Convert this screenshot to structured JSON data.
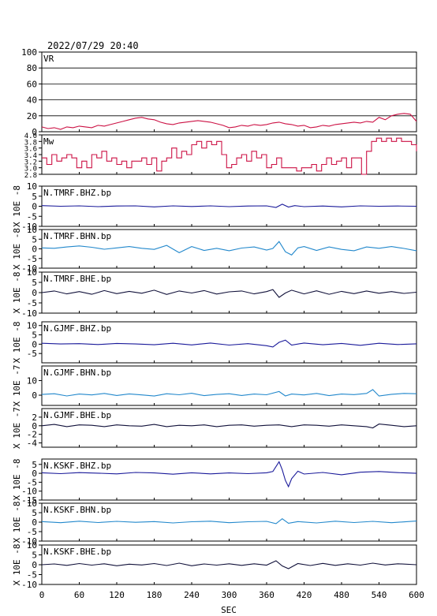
{
  "title": "2022/07/29 20:40",
  "xlabel": "SEC",
  "x_ticks": [
    "0",
    "60",
    "120",
    "180",
    "240",
    "300",
    "360",
    "420",
    "480",
    "540",
    "600"
  ],
  "x_range": [
    0,
    600
  ],
  "chart_data": [
    {
      "type": "line",
      "name": "VR",
      "label": "VR",
      "ylim": [
        0,
        100
      ],
      "yticks": [
        0,
        20,
        40,
        60,
        80,
        100
      ],
      "ytick_labels": [
        "0",
        "20",
        "40",
        "60",
        "80",
        "100"
      ],
      "grid": "horizontal",
      "color": "#cc1144",
      "x": [
        0,
        10,
        20,
        30,
        40,
        50,
        60,
        70,
        80,
        90,
        100,
        110,
        120,
        130,
        140,
        150,
        160,
        170,
        180,
        190,
        200,
        210,
        220,
        230,
        240,
        250,
        260,
        270,
        280,
        290,
        300,
        310,
        320,
        330,
        340,
        350,
        360,
        370,
        380,
        390,
        400,
        410,
        420,
        430,
        440,
        450,
        460,
        470,
        480,
        490,
        500,
        510,
        520,
        530,
        540,
        550,
        560,
        570,
        580,
        590,
        600
      ],
      "y": [
        6,
        4,
        5,
        3,
        6,
        5,
        7,
        6,
        5,
        8,
        7,
        9,
        11,
        13,
        15,
        17,
        18,
        16,
        15,
        12,
        10,
        9,
        11,
        12,
        13,
        14,
        13,
        12,
        10,
        8,
        5,
        6,
        8,
        7,
        9,
        8,
        9,
        11,
        12,
        10,
        9,
        7,
        8,
        5,
        6,
        8,
        7,
        9,
        10,
        11,
        12,
        11,
        13,
        12,
        18,
        15,
        20,
        22,
        23,
        22,
        13
      ]
    },
    {
      "type": "step",
      "name": "Mw",
      "label": "Mw",
      "ylim": [
        2.8,
        4.0
      ],
      "yticks": [
        2.8,
        3.0,
        3.2,
        3.4,
        3.6,
        3.8,
        4.0
      ],
      "ytick_labels": [
        "2.8",
        "3.0",
        "3.2",
        "3.4",
        "3.6",
        "3.8",
        "4.0"
      ],
      "color": "#cc1144",
      "x": [
        0,
        8,
        16,
        24,
        32,
        40,
        48,
        56,
        64,
        72,
        80,
        88,
        96,
        104,
        112,
        120,
        128,
        136,
        144,
        152,
        160,
        168,
        176,
        184,
        192,
        200,
        208,
        216,
        224,
        232,
        240,
        248,
        256,
        264,
        272,
        280,
        288,
        296,
        304,
        312,
        320,
        328,
        336,
        344,
        352,
        360,
        368,
        376,
        384,
        392,
        400,
        408,
        416,
        424,
        432,
        440,
        448,
        456,
        464,
        472,
        480,
        488,
        496,
        504,
        512,
        520,
        528,
        536,
        544,
        552,
        560,
        568,
        576,
        584,
        592,
        600
      ],
      "y": [
        3.3,
        3.1,
        3.4,
        3.2,
        3.3,
        3.4,
        3.3,
        3.0,
        3.2,
        3.0,
        3.4,
        3.3,
        3.5,
        3.2,
        3.3,
        3.1,
        3.2,
        3.0,
        3.2,
        3.2,
        3.3,
        3.1,
        3.3,
        2.9,
        3.2,
        3.3,
        3.6,
        3.3,
        3.5,
        3.4,
        3.7,
        3.8,
        3.6,
        3.8,
        3.7,
        3.8,
        3.4,
        3.0,
        3.1,
        3.3,
        3.4,
        3.2,
        3.5,
        3.3,
        3.4,
        3.0,
        3.1,
        3.3,
        3.0,
        3.0,
        3.0,
        2.9,
        3.0,
        3.0,
        3.1,
        2.9,
        3.1,
        3.3,
        3.1,
        3.2,
        3.3,
        3.0,
        3.3,
        3.3,
        2.8,
        3.5,
        3.8,
        3.9,
        3.8,
        3.9,
        3.8,
        3.9,
        3.8,
        3.8,
        3.7,
        3.5
      ]
    },
    {
      "type": "line",
      "name": "N.TMRF.BHZ.bp",
      "label": "N.TMRF.BHZ.bp",
      "ylim": [
        -10,
        10
      ],
      "yticks": [
        -10,
        -5,
        0,
        5,
        10
      ],
      "ytick_labels": [
        "-10",
        "-5",
        "0",
        "5",
        "10"
      ],
      "ylabel": "X 10E -8",
      "color": "#1a1a9a",
      "x": [
        0,
        30,
        60,
        90,
        120,
        150,
        180,
        210,
        240,
        270,
        300,
        330,
        360,
        375,
        385,
        395,
        405,
        420,
        450,
        480,
        510,
        540,
        570,
        600
      ],
      "y": [
        0.3,
        0,
        0.2,
        -0.2,
        0.1,
        0.2,
        -0.3,
        0.2,
        -0.1,
        0.2,
        -0.2,
        0.1,
        0.2,
        -0.6,
        1.0,
        -0.4,
        0.3,
        -0.2,
        0.1,
        -0.3,
        0.2,
        0,
        0.1,
        0
      ]
    },
    {
      "type": "line",
      "name": "N.TMRF.BHN.bp",
      "label": "N.TMRF.BHN.bp",
      "ylim": [
        -10,
        10
      ],
      "yticks": [
        -10,
        -5,
        0,
        5,
        10
      ],
      "ytick_labels": [
        "-10",
        "-5",
        "0",
        "5",
        "10"
      ],
      "ylabel": "X 10E -8",
      "color": "#2288cc",
      "x": [
        0,
        20,
        40,
        60,
        80,
        100,
        120,
        140,
        160,
        180,
        200,
        220,
        240,
        260,
        280,
        300,
        320,
        340,
        360,
        370,
        380,
        390,
        400,
        410,
        420,
        440,
        460,
        480,
        500,
        520,
        540,
        560,
        580,
        600
      ],
      "y": [
        0.5,
        0.3,
        1.0,
        1.5,
        0.8,
        -0.2,
        0.5,
        1.2,
        0.3,
        -0.3,
        1.8,
        -2.0,
        1.2,
        -0.8,
        0.3,
        -1.0,
        0.4,
        1.0,
        -0.6,
        0.2,
        3.8,
        -1.5,
        -3.2,
        0.5,
        1.2,
        -0.8,
        1.0,
        -0.3,
        -1.0,
        1.0,
        0.3,
        1.2,
        0.2,
        -1.0
      ]
    },
    {
      "type": "line",
      "name": "N.TMRF.BHE.bp",
      "label": "N.TMRF.BHE.bp",
      "ylim": [
        -10,
        10
      ],
      "yticks": [
        -10,
        -5,
        0,
        5,
        10
      ],
      "ytick_labels": [
        "-10",
        "-5",
        "0",
        "5",
        "10"
      ],
      "ylabel": "X 10E -8",
      "color": "#11113a",
      "x": [
        0,
        20,
        40,
        60,
        80,
        100,
        120,
        140,
        160,
        180,
        200,
        220,
        240,
        260,
        280,
        300,
        320,
        340,
        360,
        370,
        380,
        390,
        400,
        420,
        440,
        460,
        480,
        500,
        520,
        540,
        560,
        580,
        600
      ],
      "y": [
        0,
        0.8,
        -0.6,
        0.5,
        -0.8,
        1.0,
        -0.5,
        0.6,
        -0.3,
        1.2,
        -0.9,
        0.8,
        -0.2,
        1.0,
        -0.7,
        0.4,
        0.8,
        -0.6,
        0.5,
        1.5,
        -2.3,
        -0.2,
        1.2,
        -0.6,
        0.9,
        -0.8,
        0.6,
        -0.5,
        0.8,
        -0.3,
        0.5,
        -0.4,
        0.2
      ]
    },
    {
      "type": "line",
      "name": "N.GJMF.BHZ.bp",
      "label": "N.GJMF.BHZ.bp",
      "ylim": [
        -10,
        12
      ],
      "yticks": [
        -5,
        0,
        5,
        10
      ],
      "ytick_labels": [
        "-5",
        "0",
        "5",
        "10"
      ],
      "ylabel": "X 10E -8",
      "color": "#1a1a9a",
      "x": [
        0,
        30,
        60,
        90,
        120,
        150,
        180,
        210,
        240,
        270,
        300,
        330,
        360,
        370,
        380,
        390,
        400,
        420,
        450,
        480,
        510,
        540,
        570,
        600
      ],
      "y": [
        0.5,
        0.1,
        0.3,
        -0.2,
        0.4,
        0.1,
        -0.3,
        0.5,
        -0.4,
        0.6,
        -0.5,
        0.3,
        -0.8,
        -1.5,
        1.0,
        2.2,
        -0.5,
        0.6,
        -0.3,
        0.4,
        -0.6,
        0.5,
        -0.2,
        0.2
      ]
    },
    {
      "type": "line",
      "name": "N.GJMF.BHN.bp",
      "label": "N.GJMF.BHN.bp",
      "ylim": [
        -7,
        20
      ],
      "yticks": [
        0,
        10
      ],
      "ytick_labels": [
        "0",
        "10"
      ],
      "ylabel": "X 10E -7",
      "color": "#2288cc",
      "x": [
        0,
        20,
        40,
        60,
        80,
        100,
        120,
        140,
        160,
        180,
        200,
        220,
        240,
        260,
        280,
        300,
        320,
        340,
        360,
        380,
        390,
        400,
        420,
        440,
        460,
        480,
        500,
        520,
        530,
        540,
        560,
        580,
        600
      ],
      "y": [
        0.5,
        1.0,
        -0.5,
        0.8,
        0.2,
        1.2,
        -0.2,
        0.9,
        0.2,
        -0.6,
        1.0,
        0.3,
        1.3,
        -0.3,
        0.5,
        1.0,
        -0.2,
        0.8,
        0.3,
        2.5,
        -0.5,
        0.8,
        0.2,
        1.2,
        -0.3,
        0.8,
        0.4,
        1.2,
        3.8,
        -0.6,
        0.6,
        1.2,
        1.0
      ]
    },
    {
      "type": "line",
      "name": "N.GJMF.BHE.bp",
      "label": "N.GJMF.BHE.bp",
      "ylim": [
        -5,
        4
      ],
      "yticks": [
        -4,
        -2,
        0,
        2
      ],
      "ytick_labels": [
        "-4",
        "-2",
        "0",
        "2"
      ],
      "ylabel": "X 10E -7",
      "color": "#11113a",
      "x": [
        0,
        20,
        40,
        60,
        80,
        100,
        120,
        140,
        160,
        180,
        200,
        220,
        240,
        260,
        280,
        300,
        320,
        340,
        360,
        380,
        400,
        420,
        440,
        460,
        480,
        500,
        520,
        530,
        540,
        560,
        580,
        600
      ],
      "y": [
        0,
        0.3,
        -0.2,
        0.2,
        0.1,
        -0.2,
        0.2,
        0,
        -0.1,
        0.3,
        -0.2,
        0.1,
        0,
        0.2,
        -0.2,
        0.1,
        0.2,
        -0.1,
        0.1,
        0.2,
        -0.2,
        0.2,
        0.1,
        -0.1,
        0.2,
        0,
        -0.2,
        -0.5,
        0.4,
        0.1,
        -0.2,
        0
      ]
    },
    {
      "type": "line",
      "name": "N.KSKF.BHZ.bp",
      "label": "N.KSKF.BHZ.bp",
      "ylim": [
        -15,
        8
      ],
      "yticks": [
        -15,
        -10,
        -5,
        0,
        5
      ],
      "ytick_labels": [
        "-15",
        "-10",
        "-5",
        "0",
        "5"
      ],
      "ylabel": "X 10E -8",
      "color": "#1a1a9a",
      "x": [
        0,
        30,
        60,
        90,
        120,
        150,
        180,
        210,
        240,
        270,
        300,
        330,
        360,
        370,
        380,
        385,
        390,
        395,
        400,
        410,
        420,
        450,
        480,
        510,
        540,
        570,
        600
      ],
      "y": [
        0.3,
        -0.2,
        0.4,
        0.1,
        -0.3,
        0.5,
        0.2,
        -0.5,
        0.3,
        -0.3,
        0.2,
        -0.2,
        0.3,
        1.0,
        6.5,
        2.0,
        -4.0,
        -7.5,
        -3.0,
        1.2,
        -0.4,
        0.5,
        -0.8,
        0.6,
        1.0,
        0.4,
        0
      ]
    },
    {
      "type": "line",
      "name": "N.KSKF.BHN.bp",
      "label": "N.KSKF.BHN.bp",
      "ylim": [
        -10,
        10
      ],
      "yticks": [
        -10,
        -5,
        0,
        5,
        10
      ],
      "ytick_labels": [
        "-10",
        "-5",
        "0",
        "5",
        "10"
      ],
      "ylabel": "X 10E -8",
      "color": "#2288cc",
      "x": [
        0,
        30,
        60,
        90,
        120,
        150,
        180,
        210,
        240,
        270,
        300,
        330,
        360,
        375,
        385,
        395,
        410,
        440,
        470,
        500,
        530,
        560,
        600
      ],
      "y": [
        0.3,
        -0.3,
        0.5,
        -0.2,
        0.4,
        -0.1,
        0.3,
        -0.4,
        0.2,
        0.5,
        -0.3,
        0.2,
        0.4,
        -0.8,
        1.8,
        -0.6,
        0.3,
        -0.4,
        0.5,
        -0.2,
        0.4,
        -0.3,
        0.6
      ]
    },
    {
      "type": "line",
      "name": "N.KSKF.BHE.bp",
      "label": "N.KSKF.BHE.bp",
      "ylim": [
        -10,
        10
      ],
      "yticks": [
        -10,
        -5,
        0,
        5,
        10
      ],
      "ytick_labels": [
        "-10",
        "-5",
        "0",
        "5",
        "10"
      ],
      "ylabel": "X 10E -8",
      "color": "#11113a",
      "x": [
        0,
        20,
        40,
        60,
        80,
        100,
        120,
        140,
        160,
        180,
        200,
        220,
        240,
        260,
        280,
        300,
        320,
        340,
        360,
        375,
        385,
        395,
        410,
        430,
        450,
        470,
        490,
        510,
        530,
        550,
        570,
        600
      ],
      "y": [
        0,
        0.4,
        -0.3,
        0.6,
        -0.2,
        0.5,
        -0.5,
        0.3,
        -0.1,
        0.6,
        -0.4,
        0.8,
        -0.5,
        0.4,
        -0.2,
        0.5,
        -0.3,
        0.5,
        -0.2,
        2.0,
        -0.6,
        -2.0,
        0.6,
        -0.4,
        0.7,
        -0.3,
        0.5,
        -0.2,
        0.8,
        -0.1,
        0.5,
        0
      ]
    }
  ]
}
